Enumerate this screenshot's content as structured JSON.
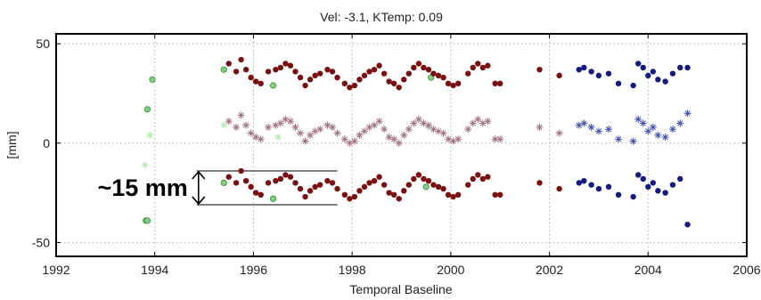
{
  "chart_data": {
    "type": "scatter",
    "title": "Vel: -3.1, KTemp: 0.09",
    "xlabel": "Temporal Baseline",
    "ylabel": "[mm]",
    "xlim": [
      1992,
      2006
    ],
    "ylim": [
      -57,
      55
    ],
    "xticks": [
      1992,
      1994,
      1996,
      1998,
      2000,
      2002,
      2004,
      2006
    ],
    "yticks": [
      -50,
      0,
      50
    ],
    "grid": true,
    "colors": {
      "green": "#7fcf7f",
      "darkred": "#7a1010",
      "navy": "#141a80",
      "lightgreen": "#b8e4b0",
      "pinkcross": "#a07080",
      "bluecross": "#4050b0"
    },
    "annotation": {
      "text": "~15 mm",
      "y_top": -14,
      "y_bottom": -31,
      "x_start": 1994.85,
      "x_end": 1997.7
    },
    "series": [
      {
        "marker": "circle",
        "color": "green",
        "x": [
          1993.85,
          1993.95,
          1995.4,
          1996.4,
          1999.6,
          1995.4,
          1996.4,
          1999.5
        ],
        "y": [
          17,
          32,
          37,
          29,
          33,
          -20,
          -28,
          -22
        ]
      },
      {
        "marker": "circle",
        "color": "green",
        "x": [
          1993.82,
          1993.85
        ],
        "y": [
          -39,
          -39
        ]
      },
      {
        "marker": "circle",
        "color": "darkred",
        "x": [
          1995.5,
          1995.65,
          1995.75,
          1995.85,
          1995.95,
          1996.05,
          1996.15,
          1996.3,
          1996.45,
          1996.55,
          1996.65,
          1996.75,
          1996.85,
          1996.95,
          1997.05,
          1997.15,
          1997.25,
          1997.35,
          1997.5,
          1997.6,
          1997.7,
          1997.85,
          1997.95,
          1998.05,
          1998.15,
          1998.25,
          1998.35,
          1998.45,
          1998.55,
          1998.65,
          1998.75,
          1998.85,
          1998.95,
          1999.05,
          1999.15,
          1999.25,
          1999.35,
          1999.45,
          1999.55,
          1999.65,
          1999.75,
          1999.85,
          1999.95,
          2000.05,
          2000.15,
          2000.35,
          2000.45,
          2000.55,
          2000.65,
          2000.75,
          2000.9,
          2001.0,
          2001.8,
          2002.2
        ],
        "y": [
          40,
          36,
          42,
          37,
          33,
          31,
          30,
          36,
          37,
          38,
          40,
          39,
          36,
          33,
          29,
          32,
          34,
          35,
          37,
          36,
          33,
          30,
          28,
          29,
          32,
          34,
          36,
          37,
          39,
          35,
          31,
          30,
          28,
          32,
          35,
          38,
          40,
          38,
          37,
          35,
          34,
          33,
          30,
          29,
          30,
          35,
          38,
          40,
          38,
          39,
          30,
          30,
          37,
          34
        ]
      },
      {
        "marker": "circle",
        "color": "darkred",
        "x": [
          1995.5,
          1995.65,
          1995.75,
          1995.85,
          1995.95,
          1996.05,
          1996.15,
          1996.3,
          1996.45,
          1996.55,
          1996.65,
          1996.75,
          1996.85,
          1996.95,
          1997.05,
          1997.15,
          1997.25,
          1997.35,
          1997.5,
          1997.6,
          1997.7,
          1997.85,
          1997.95,
          1998.05,
          1998.15,
          1998.25,
          1998.35,
          1998.45,
          1998.55,
          1998.65,
          1998.75,
          1998.85,
          1998.95,
          1999.05,
          1999.15,
          1999.25,
          1999.35,
          1999.45,
          1999.55,
          1999.65,
          1999.75,
          1999.85,
          1999.95,
          2000.05,
          2000.15,
          2000.35,
          2000.45,
          2000.55,
          2000.65,
          2000.75,
          2000.9,
          2001.0,
          2001.8,
          2002.2
        ],
        "y": [
          -17,
          -20,
          -14,
          -19,
          -22,
          -25,
          -26,
          -20,
          -19,
          -18,
          -16,
          -17,
          -20,
          -23,
          -27,
          -24,
          -22,
          -21,
          -19,
          -20,
          -23,
          -26,
          -28,
          -27,
          -24,
          -22,
          -20,
          -19,
          -17,
          -21,
          -25,
          -26,
          -28,
          -24,
          -21,
          -18,
          -16,
          -18,
          -19,
          -21,
          -22,
          -23,
          -26,
          -27,
          -26,
          -21,
          -18,
          -16,
          -18,
          -17,
          -26,
          -26,
          -20,
          -23
        ]
      },
      {
        "marker": "circle",
        "color": "navy",
        "x": [
          2002.6,
          2002.7,
          2002.85,
          2003.0,
          2003.2,
          2003.4,
          2003.7,
          2003.8,
          2003.9,
          2004.0,
          2004.1,
          2004.2,
          2004.35,
          2004.5,
          2004.65,
          2004.8
        ],
        "y": [
          37,
          38,
          36,
          34,
          35,
          30,
          29,
          40,
          38,
          34,
          36,
          32,
          31,
          35,
          38,
          38
        ],
        "y2": [
          -20,
          -19,
          -21,
          -23,
          -22,
          -26,
          -27,
          -16,
          -18,
          -22,
          -20,
          -24,
          -25,
          -21,
          -18,
          -41
        ]
      },
      {
        "marker": "cross",
        "color": "lightgreen",
        "x": [
          1993.8,
          1993.9,
          1995.4,
          1996.5,
          1999.55
        ],
        "y": [
          -11,
          4,
          9,
          3,
          8
        ]
      },
      {
        "marker": "cross",
        "color": "pinkcross",
        "x": [
          1995.5,
          1995.65,
          1995.75,
          1995.85,
          1995.95,
          1996.05,
          1996.15,
          1996.3,
          1996.45,
          1996.55,
          1996.65,
          1996.75,
          1996.85,
          1996.95,
          1997.05,
          1997.15,
          1997.25,
          1997.35,
          1997.5,
          1997.6,
          1997.7,
          1997.85,
          1997.95,
          1998.05,
          1998.15,
          1998.25,
          1998.35,
          1998.45,
          1998.55,
          1998.65,
          1998.75,
          1998.85,
          1998.95,
          1999.05,
          1999.15,
          1999.25,
          1999.35,
          1999.45,
          1999.55,
          1999.65,
          1999.75,
          1999.85,
          1999.95,
          2000.05,
          2000.15,
          2000.35,
          2000.45,
          2000.55,
          2000.65,
          2000.75,
          2000.9,
          2001.0,
          2001.8,
          2002.2
        ],
        "y": [
          11,
          8,
          14,
          9,
          5,
          3,
          2,
          8,
          9,
          10,
          12,
          11,
          8,
          5,
          1,
          4,
          6,
          7,
          9,
          8,
          5,
          2,
          0,
          1,
          4,
          6,
          8,
          9,
          11,
          7,
          3,
          2,
          0,
          4,
          7,
          10,
          12,
          10,
          9,
          7,
          6,
          5,
          2,
          1,
          2,
          7,
          10,
          12,
          10,
          11,
          2,
          2,
          8,
          5
        ]
      },
      {
        "marker": "cross",
        "color": "bluecross",
        "x": [
          2002.6,
          2002.7,
          2002.85,
          2003.0,
          2003.2,
          2003.4,
          2003.7,
          2003.8,
          2003.9,
          2004.0,
          2004.1,
          2004.2,
          2004.35,
          2004.5,
          2004.65,
          2004.8
        ],
        "y": [
          9,
          10,
          8,
          6,
          7,
          2,
          1,
          12,
          10,
          6,
          8,
          4,
          3,
          7,
          10,
          15
        ]
      }
    ]
  }
}
